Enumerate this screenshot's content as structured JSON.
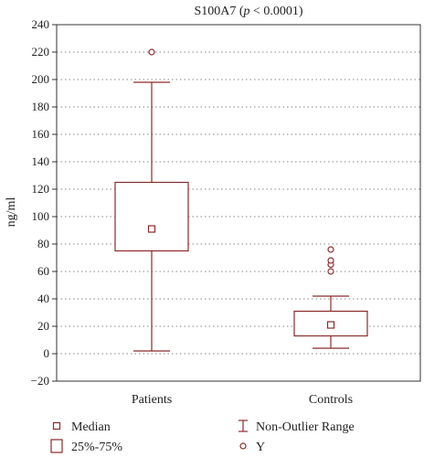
{
  "chart_data": {
    "type": "boxplot",
    "title_main": "S100A7 (",
    "title_p": "p",
    "title_rest": " < 0.0001)",
    "ylabel": "ng/ml",
    "xlabel": "",
    "ylim": [
      -20,
      240
    ],
    "yticks": [
      -20,
      0,
      20,
      40,
      60,
      80,
      100,
      120,
      140,
      160,
      180,
      200,
      220,
      240
    ],
    "ytick_labels": [
      "−20",
      "0",
      "20",
      "40",
      "60",
      "80",
      "100",
      "120",
      "140",
      "160",
      "180",
      "200",
      "220",
      "240"
    ],
    "grid": "horizontal-dotted",
    "color": "#8b2a2a",
    "categories": [
      "Patients",
      "Controls"
    ],
    "groups": [
      {
        "category": "Patients",
        "median": 91,
        "q1": 75,
        "q3": 125,
        "whisker_low": 2,
        "whisker_high": 198,
        "outliers": [
          220
        ]
      },
      {
        "category": "Controls",
        "median": 21,
        "q1": 13,
        "q3": 31,
        "whisker_low": 4,
        "whisker_high": 42,
        "outliers": [
          60,
          65,
          68,
          76
        ]
      }
    ],
    "legend": {
      "placement": "bottom",
      "items": [
        {
          "symbol": "small-square",
          "label": "Median"
        },
        {
          "symbol": "whisker",
          "label": "Non-Outlier Range"
        },
        {
          "symbol": "box",
          "label": "25%-75%"
        },
        {
          "symbol": "circle",
          "label": "Y"
        }
      ]
    }
  }
}
